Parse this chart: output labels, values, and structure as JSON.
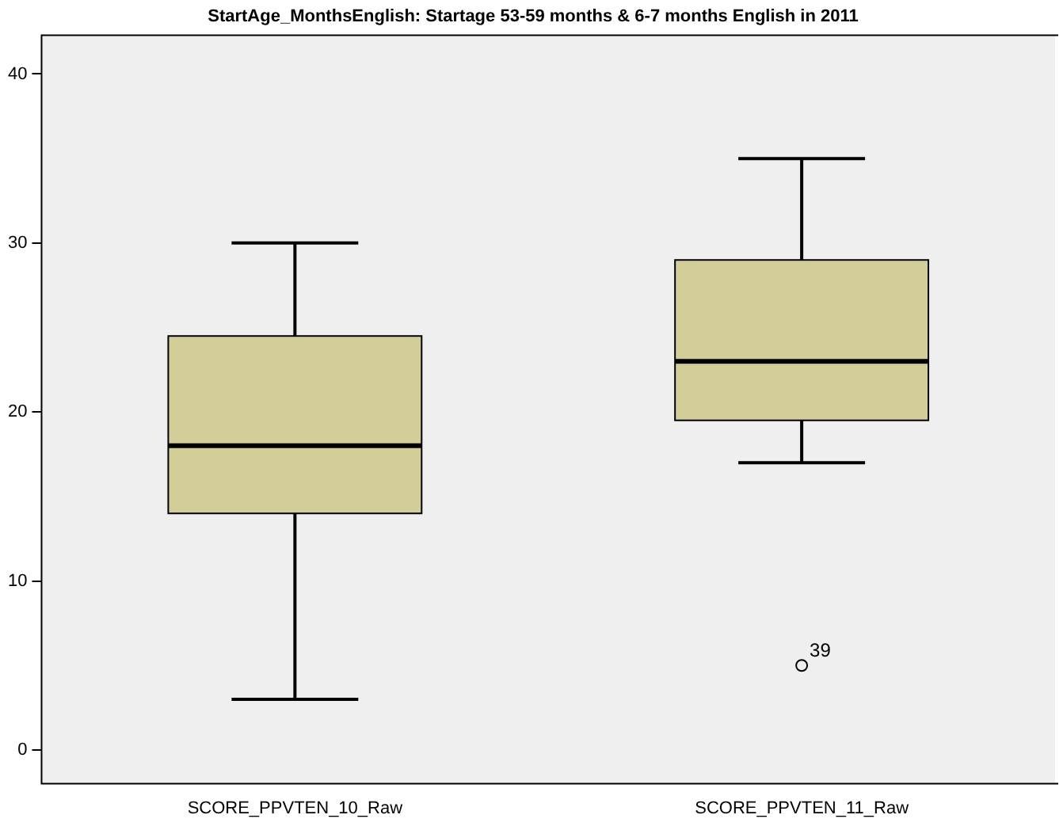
{
  "chart_data": {
    "type": "box",
    "title": "StartAge_MonthsEnglish: Startage 53-59 months & 6-7 months English in 2011",
    "categories": [
      "SCORE_PPVTEN_10_Raw",
      "SCORE_PPVTEN_11_Raw"
    ],
    "color": "#d3ce97",
    "boxes": [
      {
        "low": 3,
        "q1": 14,
        "median": 18,
        "q3": 24.5,
        "high": 30
      },
      {
        "low": 17,
        "q1": 19.5,
        "median": 23,
        "q3": 29,
        "high": 35,
        "outliers": [
          5
        ]
      }
    ],
    "ylim": [
      -2,
      42.3
    ],
    "yticks": [
      0,
      10,
      20,
      30,
      40
    ],
    "grid": false,
    "legend": false,
    "annotations": [
      "39"
    ]
  }
}
